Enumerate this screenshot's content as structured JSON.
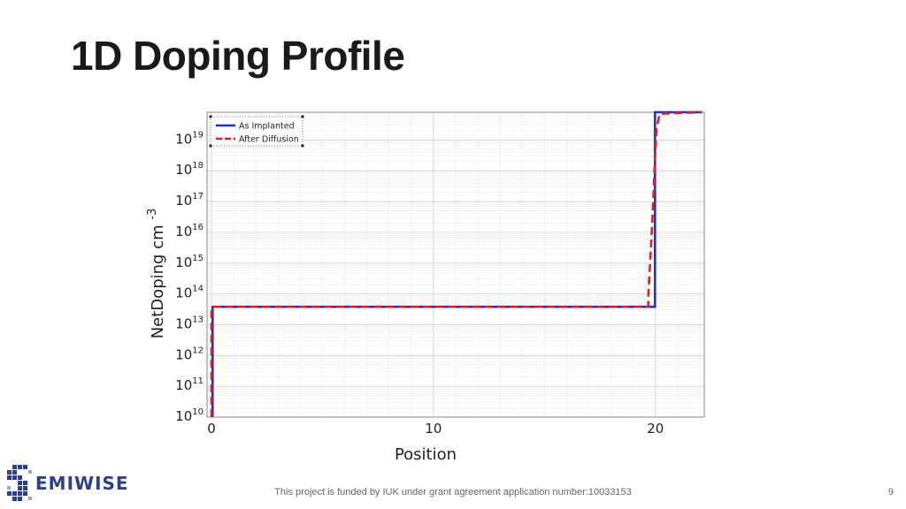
{
  "title": "1D Doping Profile",
  "footer": "This project is funded by IUK under grant agreement application number:10033153",
  "page_number": "9",
  "logo": {
    "text": "EMIWISE",
    "letter": "S",
    "color": "#2a3f8f"
  },
  "chart_data": {
    "type": "line",
    "xlabel": "Position",
    "ylabel": "NetDoping cm",
    "ylabel_exp": "-3",
    "xlim": [
      -0.2,
      22.2
    ],
    "ylim_log10": [
      10,
      19.9
    ],
    "y_scale": "log",
    "grid": true,
    "legend_position": "top-left",
    "x_ticks": [
      0,
      10,
      20
    ],
    "y_ticks": [
      {
        "base": "10",
        "exp": "10",
        "value": 10
      },
      {
        "base": "10",
        "exp": "11",
        "value": 11
      },
      {
        "base": "10",
        "exp": "12",
        "value": 12
      },
      {
        "base": "10",
        "exp": "13",
        "value": 13
      },
      {
        "base": "10",
        "exp": "14",
        "value": 14
      },
      {
        "base": "10",
        "exp": "15",
        "value": 15
      },
      {
        "base": "10",
        "exp": "16",
        "value": 16
      },
      {
        "base": "10",
        "exp": "17",
        "value": 17
      },
      {
        "base": "10",
        "exp": "18",
        "value": 18
      },
      {
        "base": "10",
        "exp": "19",
        "value": 19
      }
    ],
    "series": [
      {
        "name": "As Implanted",
        "color": "#1f2fd6",
        "dash": "solid",
        "points": [
          [
            0.05,
            10
          ],
          [
            0.05,
            13.58
          ],
          [
            19.98,
            13.58
          ],
          [
            19.98,
            19.9
          ],
          [
            22.1,
            19.9
          ]
        ]
      },
      {
        "name": "After Diffusion",
        "color": "#e02020",
        "dash": "dashed",
        "points": [
          [
            0.0,
            10
          ],
          [
            0.0,
            13.58
          ],
          [
            19.68,
            13.58
          ],
          [
            19.68,
            14.0
          ],
          [
            19.8,
            15.5
          ],
          [
            19.9,
            17.0
          ],
          [
            19.98,
            18.4
          ],
          [
            20.05,
            19.4
          ],
          [
            20.2,
            19.85
          ],
          [
            22.1,
            19.9
          ]
        ]
      }
    ]
  }
}
